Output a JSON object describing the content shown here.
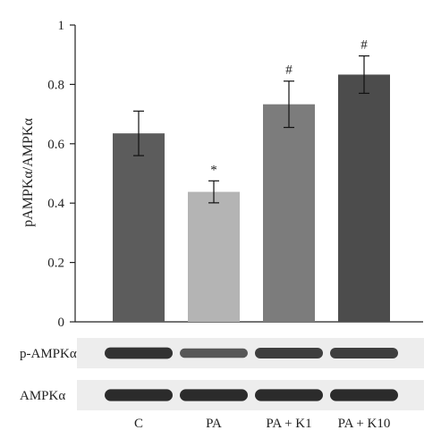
{
  "chart_data": {
    "type": "bar",
    "categories": [
      "C",
      "PA",
      "PA + K1",
      "PA + K10"
    ],
    "values": [
      0.635,
      0.438,
      0.733,
      0.833
    ],
    "errors": [
      0.075,
      0.037,
      0.078,
      0.063
    ],
    "significance": [
      "",
      "*",
      "#",
      "#"
    ],
    "bar_colors": [
      "#5c5c5c",
      "#b4b4b4",
      "#7c7c7c",
      "#4c4c4c"
    ],
    "ylabel": "pAMPKα/AMPKα",
    "ylim": [
      0,
      1
    ],
    "yticks": [
      0,
      0.2,
      0.4,
      0.6,
      0.8,
      1
    ],
    "ytick_labels": [
      "0",
      "0.2",
      "0.4",
      "0.6",
      "0.8",
      "1"
    ],
    "grid": false
  },
  "blots": [
    {
      "label": "p-AMPKα",
      "intensity": [
        0.85,
        0.55,
        0.75,
        0.75
      ]
    },
    {
      "label": "AMPKα",
      "intensity": [
        0.9,
        0.9,
        0.9,
        0.9
      ]
    }
  ]
}
